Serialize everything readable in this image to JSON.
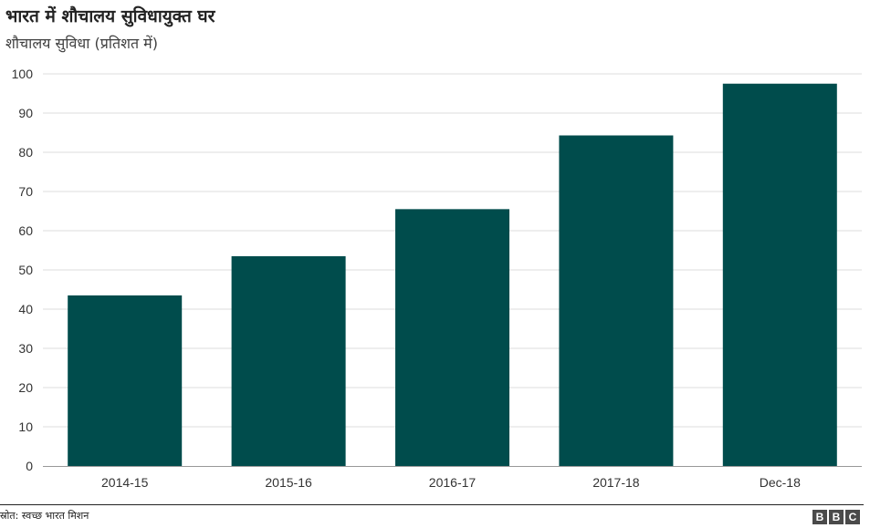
{
  "chart_data": {
    "type": "bar",
    "title": "भारत में शौचालय सुविधायुक्त घर",
    "subtitle": "शौचालय सुविधा (प्रतिशत में)",
    "categories": [
      "2014-15",
      "2015-16",
      "2016-17",
      "2017-18",
      "Dec-18"
    ],
    "values": [
      43.5,
      53.5,
      65.5,
      84.3,
      97.5
    ],
    "yticks": [
      0,
      10,
      20,
      30,
      40,
      50,
      60,
      70,
      80,
      90,
      100
    ],
    "ylim": [
      0,
      100
    ],
    "grid": true,
    "bar_color": "#004c4c"
  },
  "footer": {
    "source": "स्रोत: स्वच्छ भारत मिशन",
    "logo_letters": [
      "B",
      "B",
      "C"
    ]
  }
}
